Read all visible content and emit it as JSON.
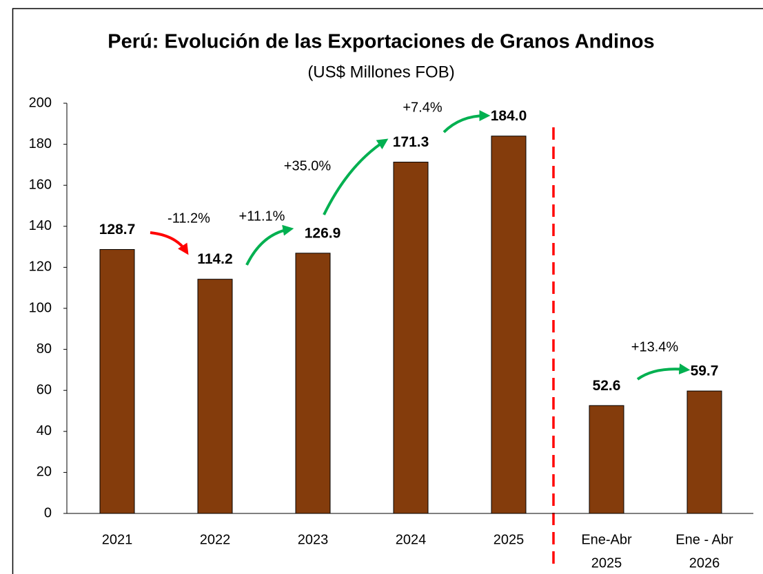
{
  "chart_data": {
    "type": "bar",
    "title": "Perú: Evolución de las Exportaciones de Granos Andinos",
    "subtitle": "(US$ Millones FOB)",
    "categories": [
      [
        "2021"
      ],
      [
        "2022"
      ],
      [
        "2023"
      ],
      [
        "2024"
      ],
      [
        "2025"
      ],
      [
        "Ene-Abr",
        "2025"
      ],
      [
        "Ene - Abr",
        "2026"
      ]
    ],
    "values": [
      128.7,
      114.2,
      126.9,
      171.3,
      184.0,
      52.6,
      59.7
    ],
    "value_labels": [
      "128.7",
      "114.2",
      "126.9",
      "171.3",
      "184.0",
      "52.6",
      "59.7"
    ],
    "color": "#843c0c",
    "ylim": [
      0,
      200
    ],
    "yticks": [
      0,
      20,
      40,
      60,
      80,
      100,
      120,
      140,
      160,
      180,
      200
    ],
    "grid": false,
    "annotations": [
      "-11.2%",
      "+11.1%",
      "+35.0%",
      "+7.4%",
      "+13.4%"
    ],
    "annotation_colors": [
      "#ff0000",
      "#00b050",
      "#00b050",
      "#00b050",
      "#00b050"
    ]
  }
}
